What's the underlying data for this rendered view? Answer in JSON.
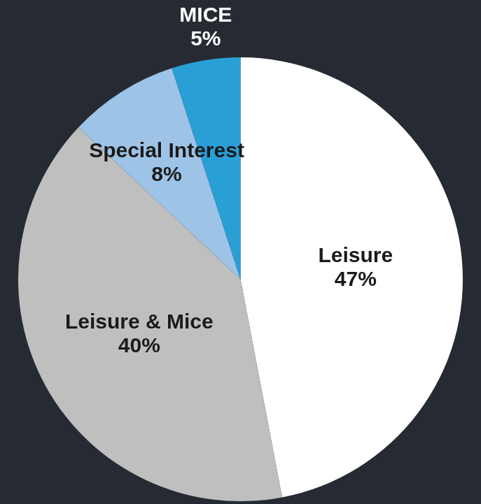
{
  "chart_data": {
    "type": "pie",
    "categories": [
      "Leisure",
      "Leisure & Mice",
      "Special Interest",
      "MICE"
    ],
    "values": [
      47,
      40,
      8,
      5
    ],
    "value_labels": [
      "47%",
      "40%",
      "8%",
      "5%"
    ],
    "colors": [
      "#ffffff",
      "#bfbfbf",
      "#9dc3e6",
      "#2a9fd6"
    ],
    "data_labels": true,
    "legend": "none"
  }
}
